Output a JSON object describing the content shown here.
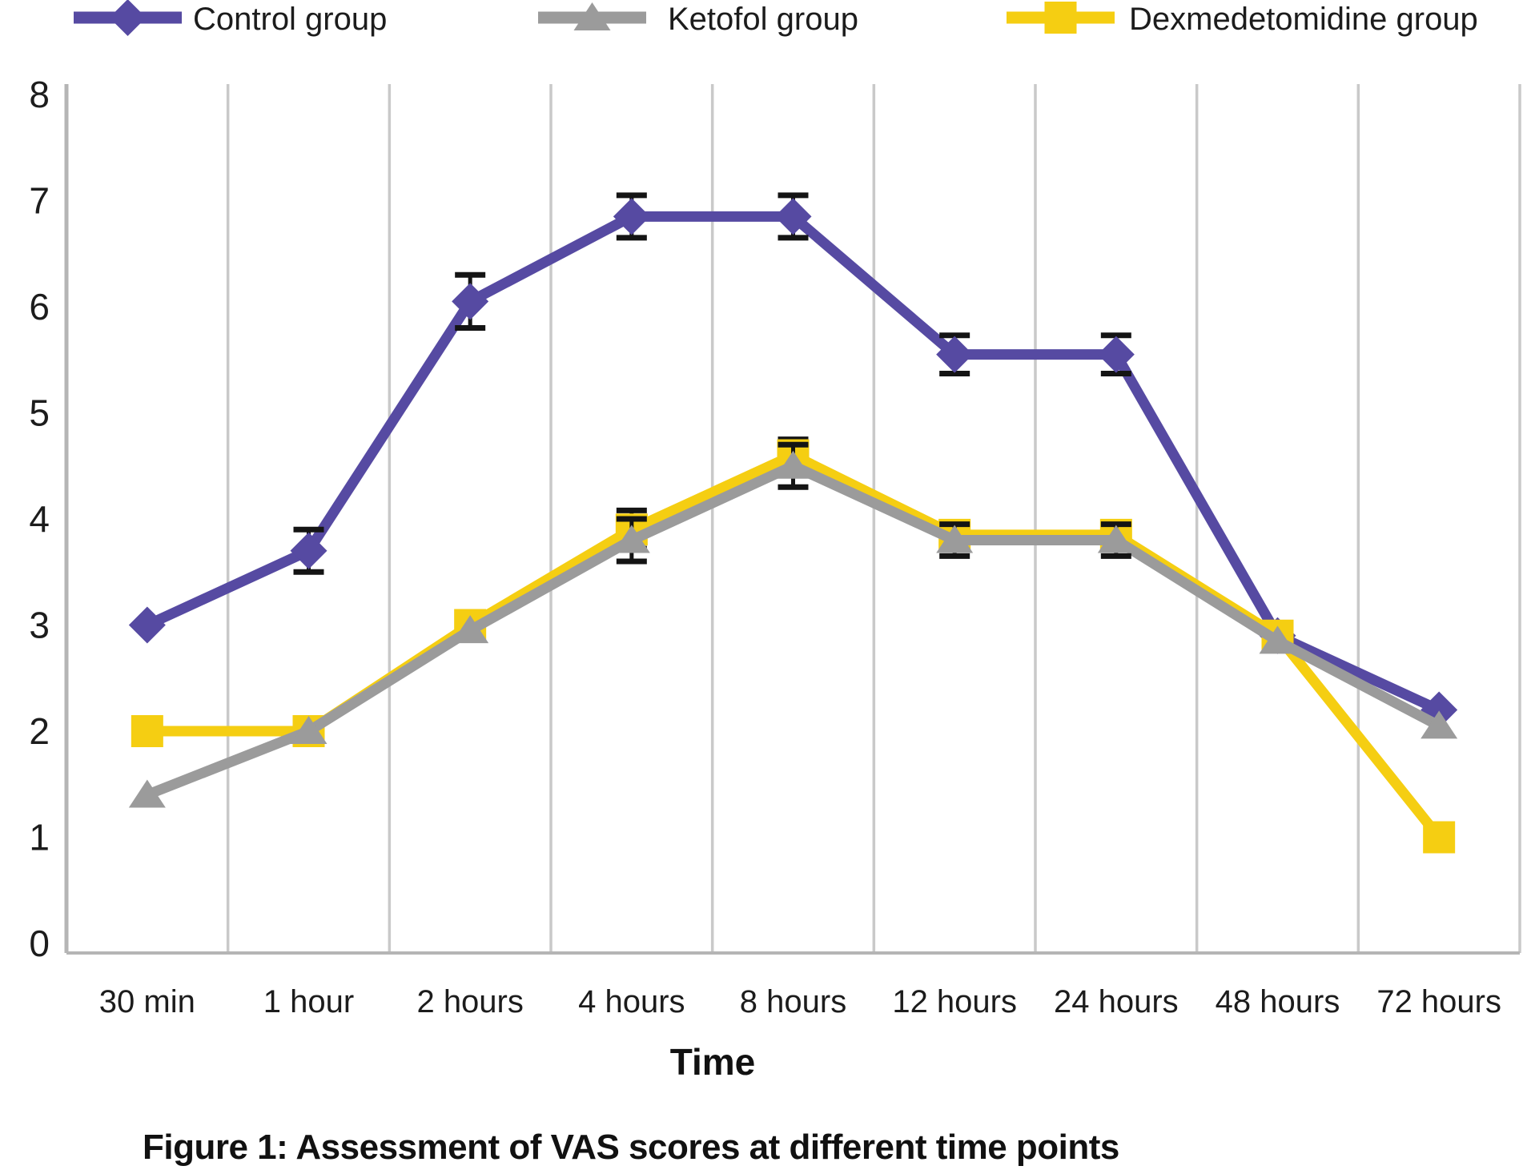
{
  "figure": {
    "caption": "Figure 1: Assessment of VAS scores at different time points"
  },
  "chart_data": {
    "type": "line",
    "title": "",
    "xlabel": "Time",
    "ylabel": "",
    "ylim": [
      0,
      8
    ],
    "yticks": [
      0,
      1,
      2,
      3,
      4,
      5,
      6,
      7,
      8
    ],
    "grid": "vertical-only",
    "legend_position": "top",
    "error_bar_color": "#141414",
    "gridline_color": "#c9c9c9",
    "axis_color": "#b5b5b5",
    "tick_text_color": "#1c1c1c",
    "categories": [
      "30 min",
      "1 hour",
      "2 hours",
      "4 hours",
      "8 hours",
      "12 hours",
      "24 hours",
      "48 hours",
      "72 hours"
    ],
    "series": [
      {
        "name": "Control group",
        "color": "#564AA2",
        "marker": "diamond",
        "values": [
          3.0,
          3.7,
          6.05,
          6.85,
          6.85,
          5.55,
          5.55,
          2.9,
          2.2
        ],
        "errors": [
          0,
          0.2,
          0.25,
          0.2,
          0.2,
          0.18,
          0.18,
          0,
          0
        ]
      },
      {
        "name": "Ketofol group",
        "color": "#9B9B9B",
        "marker": "triangle",
        "values": [
          1.4,
          2.0,
          2.95,
          3.8,
          4.5,
          3.8,
          3.8,
          2.85,
          2.05
        ],
        "errors": [
          0,
          0,
          0,
          0.2,
          0.2,
          0.15,
          0.15,
          0,
          0
        ]
      },
      {
        "name": "Dexmedetomidine group",
        "color": "#F5CE12",
        "marker": "square",
        "values": [
          2.0,
          2.0,
          3.0,
          3.9,
          4.6,
          3.85,
          3.85,
          2.9,
          1.0
        ],
        "errors": [
          0,
          0,
          0,
          0.18,
          0.15,
          0.12,
          0.12,
          0,
          0
        ]
      }
    ]
  }
}
